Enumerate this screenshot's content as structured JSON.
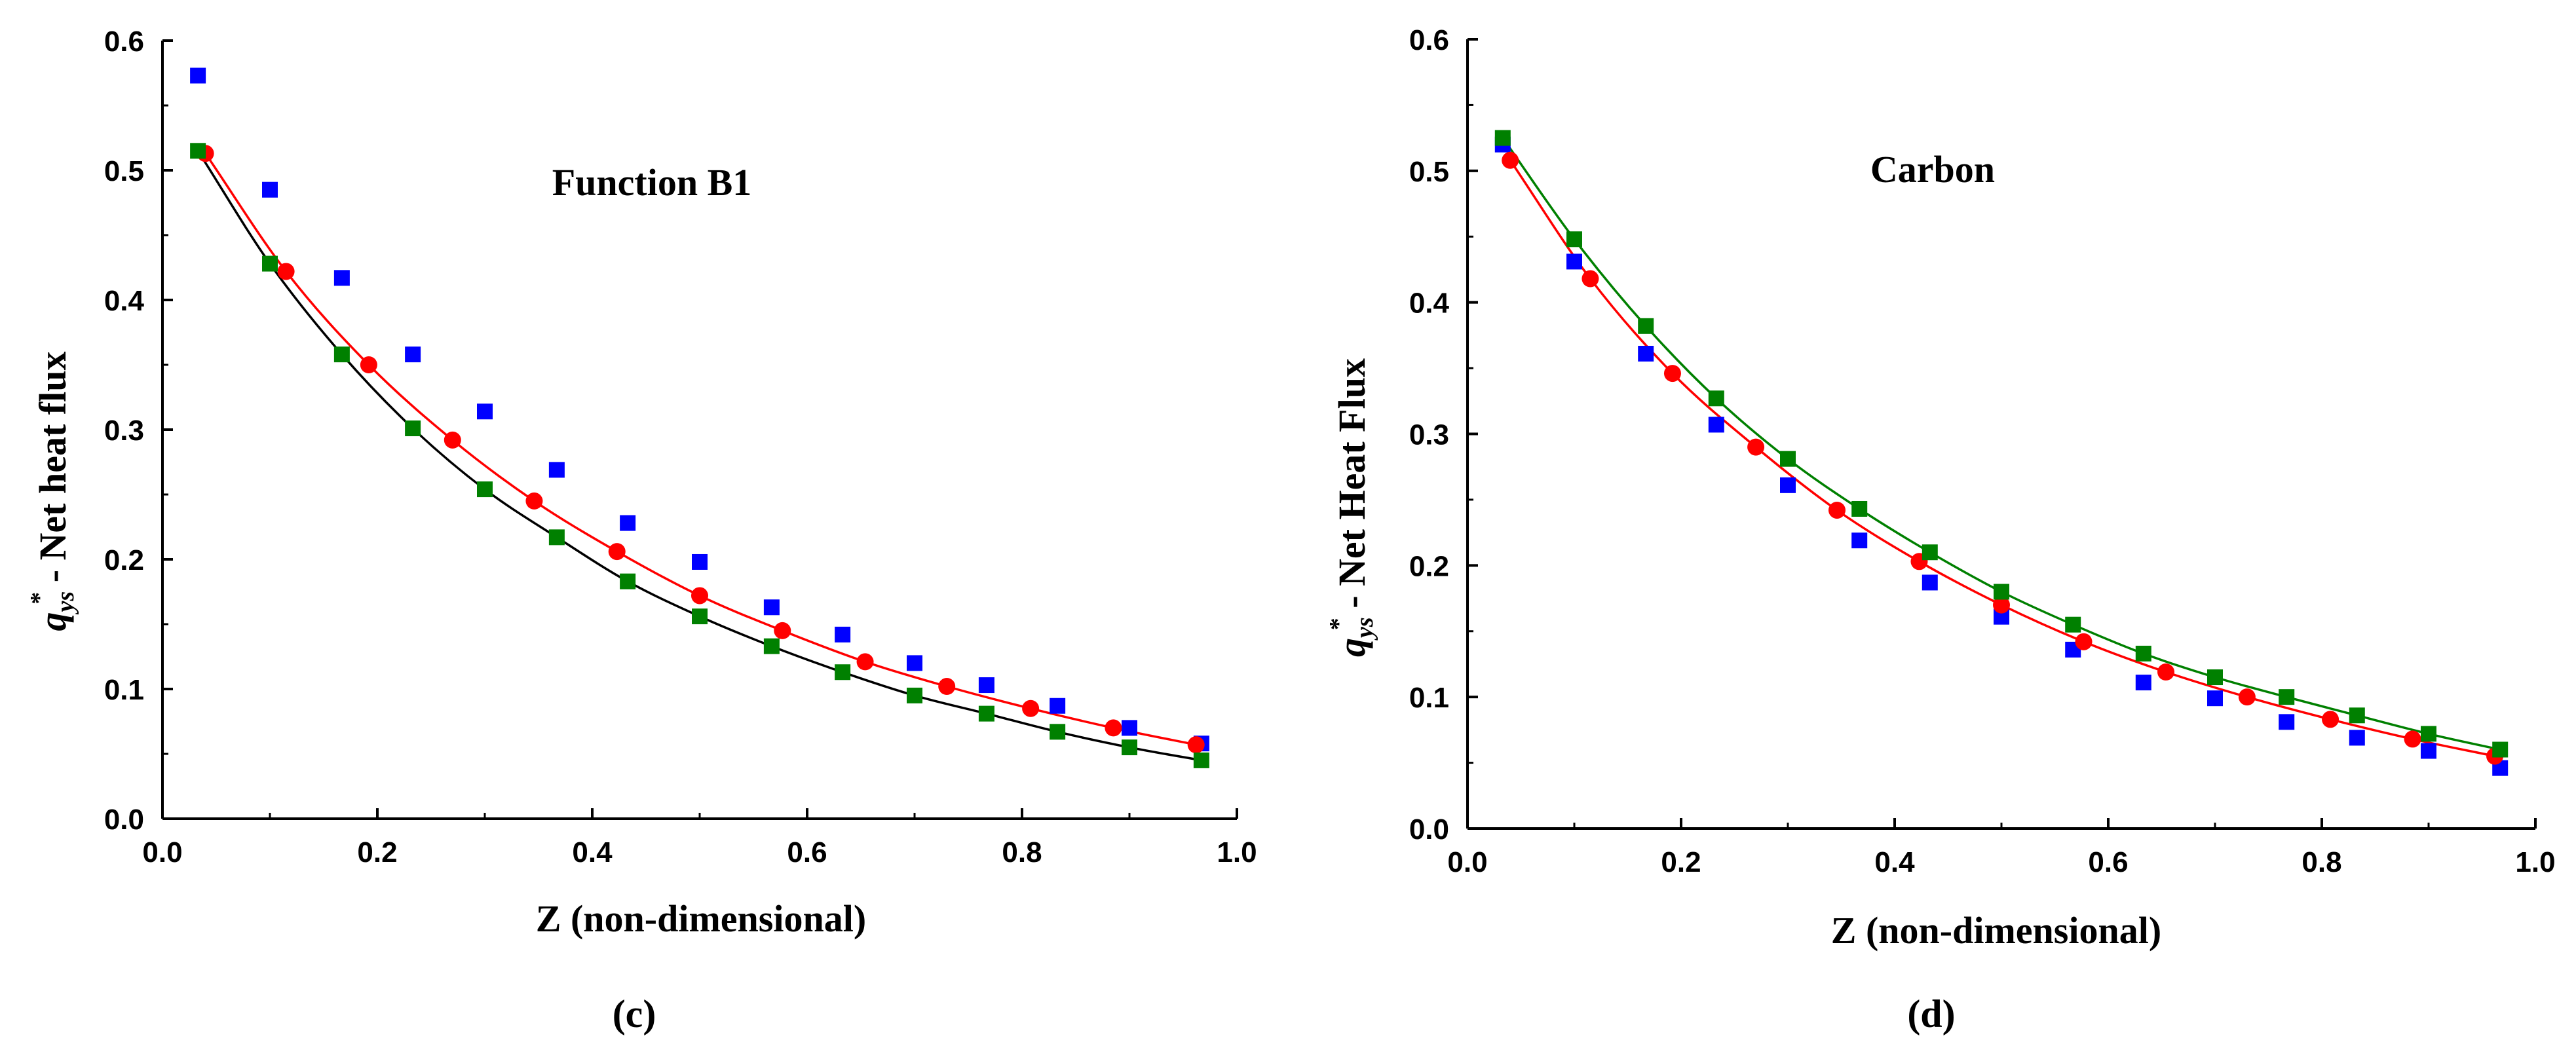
{
  "chart_data": [
    {
      "type": "scatter",
      "panel": "(c)",
      "title": "Function B1",
      "xlabel": "Z (non-dimensional)",
      "ylabel_q": "q",
      "ylabel_sub": "ys",
      "ylabel_sup": "*",
      "ylabel_rest": " - Net heat flux",
      "xlim": [
        0.0,
        1.0
      ],
      "ylim": [
        0.0,
        0.6
      ],
      "xticks": [
        "0.0",
        "0.2",
        "0.4",
        "0.6",
        "0.8",
        "1.0"
      ],
      "yticks": [
        "0.0",
        "0.1",
        "0.2",
        "0.3",
        "0.4",
        "0.5",
        "0.6"
      ],
      "series": [
        {
          "name": "blue squares",
          "color": "#0000ff",
          "marker": "square",
          "line": false,
          "x": [
            0.033,
            0.1,
            0.167,
            0.233,
            0.3,
            0.367,
            0.433,
            0.5,
            0.567,
            0.633,
            0.7,
            0.767,
            0.833,
            0.9,
            0.967
          ],
          "y": [
            0.573,
            0.485,
            0.417,
            0.358,
            0.314,
            0.269,
            0.228,
            0.198,
            0.163,
            0.142,
            0.12,
            0.103,
            0.087,
            0.07,
            0.058
          ]
        },
        {
          "name": "red circles",
          "color": "#ff0000",
          "marker": "circle",
          "line": true,
          "x": [
            0.04,
            0.115,
            0.192,
            0.27,
            0.346,
            0.423,
            0.5,
            0.577,
            0.654,
            0.73,
            0.808,
            0.885,
            0.962
          ],
          "y": [
            0.513,
            0.422,
            0.35,
            0.292,
            0.245,
            0.206,
            0.172,
            0.145,
            0.121,
            0.102,
            0.085,
            0.07,
            0.057
          ]
        },
        {
          "name": "green squares",
          "color": "#008000",
          "marker": "square",
          "line": true,
          "line_color": "#000000",
          "x": [
            0.033,
            0.1,
            0.167,
            0.233,
            0.3,
            0.367,
            0.433,
            0.5,
            0.567,
            0.633,
            0.7,
            0.767,
            0.833,
            0.9,
            0.967
          ],
          "y": [
            0.515,
            0.428,
            0.358,
            0.301,
            0.254,
            0.217,
            0.183,
            0.156,
            0.133,
            0.113,
            0.095,
            0.081,
            0.067,
            0.055,
            0.045
          ]
        }
      ]
    },
    {
      "type": "scatter",
      "panel": "(d)",
      "title": "Carbon",
      "xlabel": "Z (non-dimensional)",
      "ylabel_q": "q",
      "ylabel_sub": "ys",
      "ylabel_sup": "*",
      "ylabel_rest": " - Net Heat Flux",
      "xlim": [
        0.0,
        1.0
      ],
      "ylim": [
        0.0,
        0.6
      ],
      "xticks": [
        "0.0",
        "0.2",
        "0.4",
        "0.6",
        "0.8",
        "1.0"
      ],
      "yticks": [
        "0.0",
        "0.1",
        "0.2",
        "0.3",
        "0.4",
        "0.5",
        "0.6"
      ],
      "series": [
        {
          "name": "blue squares",
          "color": "#0000ff",
          "marker": "square",
          "line": false,
          "x": [
            0.033,
            0.1,
            0.167,
            0.233,
            0.3,
            0.367,
            0.433,
            0.5,
            0.567,
            0.633,
            0.7,
            0.767,
            0.833,
            0.9,
            0.967
          ],
          "y": [
            0.52,
            0.431,
            0.361,
            0.307,
            0.261,
            0.219,
            0.187,
            0.161,
            0.136,
            0.111,
            0.099,
            0.081,
            0.069,
            0.059,
            0.046
          ]
        },
        {
          "name": "red circles",
          "color": "#ff0000",
          "marker": "circle",
          "line": true,
          "x": [
            0.04,
            0.115,
            0.192,
            0.27,
            0.346,
            0.423,
            0.5,
            0.577,
            0.654,
            0.73,
            0.808,
            0.885,
            0.962
          ],
          "y": [
            0.508,
            0.418,
            0.346,
            0.29,
            0.242,
            0.203,
            0.17,
            0.142,
            0.119,
            0.1,
            0.083,
            0.068,
            0.055
          ]
        },
        {
          "name": "green squares",
          "color": "#008000",
          "marker": "square",
          "line": true,
          "line_color": "#008000",
          "x": [
            0.033,
            0.1,
            0.167,
            0.233,
            0.3,
            0.367,
            0.433,
            0.5,
            0.567,
            0.633,
            0.7,
            0.767,
            0.833,
            0.9,
            0.967
          ],
          "y": [
            0.525,
            0.448,
            0.382,
            0.327,
            0.281,
            0.243,
            0.21,
            0.18,
            0.155,
            0.133,
            0.115,
            0.1,
            0.086,
            0.072,
            0.06
          ]
        }
      ]
    }
  ]
}
